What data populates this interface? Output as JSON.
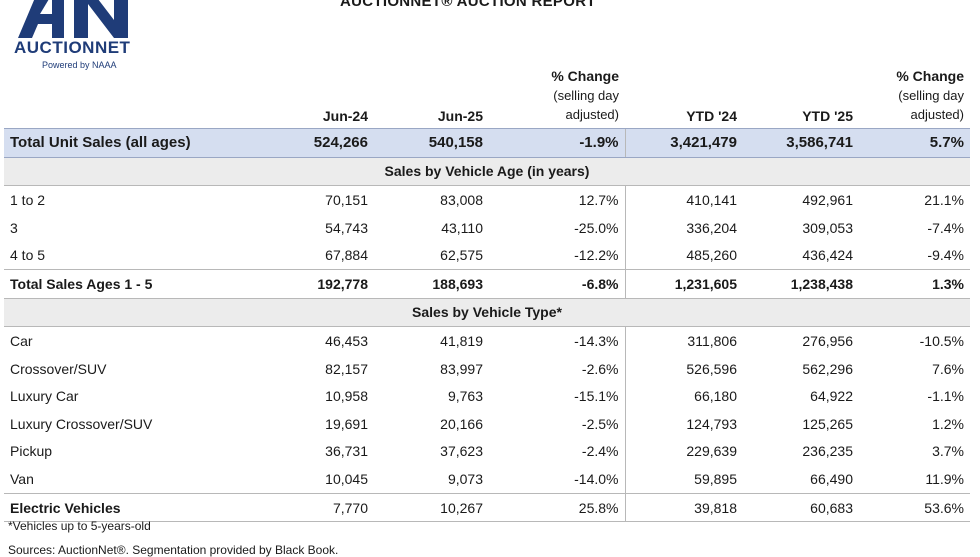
{
  "brand": {
    "name": "AUCTIONNET",
    "tagline": "Powered by NAAA"
  },
  "title": "AUCTIONNET® AUCTION REPORT",
  "header": {
    "jun24": "Jun-24",
    "jun25": "Jun-25",
    "pct_title": "% Change",
    "pct_line2": "(selling day",
    "pct_line3": "adjusted)",
    "ytd24": "YTD '24",
    "ytd25": "YTD '25"
  },
  "total": {
    "label": "Total Unit Sales (all ages)",
    "jun24": "524,266",
    "jun25": "540,158",
    "pct": "-1.9%",
    "ytd24": "3,421,479",
    "ytd25": "3,586,741",
    "ytd_pct": "5.7%"
  },
  "age_section_title": "Sales by Vehicle Age (in years)",
  "age_rows": [
    {
      "label": "1 to 2",
      "jun24": "70,151",
      "jun25": "83,008",
      "pct": "12.7%",
      "ytd24": "410,141",
      "ytd25": "492,961",
      "ytd_pct": "21.1%"
    },
    {
      "label": "3",
      "jun24": "54,743",
      "jun25": "43,110",
      "pct": "-25.0%",
      "ytd24": "336,204",
      "ytd25": "309,053",
      "ytd_pct": "-7.4%"
    },
    {
      "label": "4 to 5",
      "jun24": "67,884",
      "jun25": "62,575",
      "pct": "-12.2%",
      "ytd24": "485,260",
      "ytd25": "436,424",
      "ytd_pct": "-9.4%"
    }
  ],
  "age_total": {
    "label": "Total Sales Ages 1 - 5",
    "jun24": "192,778",
    "jun25": "188,693",
    "pct": "-6.8%",
    "ytd24": "1,231,605",
    "ytd25": "1,238,438",
    "ytd_pct": "1.3%"
  },
  "type_section_title": "Sales by Vehicle Type*",
  "type_rows": [
    {
      "label": "Car",
      "jun24": "46,453",
      "jun25": "41,819",
      "pct": "-14.3%",
      "ytd24": "311,806",
      "ytd25": "276,956",
      "ytd_pct": "-10.5%"
    },
    {
      "label": "Crossover/SUV",
      "jun24": "82,157",
      "jun25": "83,997",
      "pct": "-2.6%",
      "ytd24": "526,596",
      "ytd25": "562,296",
      "ytd_pct": "7.6%"
    },
    {
      "label": "Luxury Car",
      "jun24": "10,958",
      "jun25": "9,763",
      "pct": "-15.1%",
      "ytd24": "66,180",
      "ytd25": "64,922",
      "ytd_pct": "-1.1%"
    },
    {
      "label": "Luxury Crossover/SUV",
      "jun24": "19,691",
      "jun25": "20,166",
      "pct": "-2.5%",
      "ytd24": "124,793",
      "ytd25": "125,265",
      "ytd_pct": "1.2%"
    },
    {
      "label": "Pickup",
      "jun24": "36,731",
      "jun25": "37,623",
      "pct": "-2.4%",
      "ytd24": "229,639",
      "ytd25": "236,235",
      "ytd_pct": "3.7%"
    },
    {
      "label": "Van",
      "jun24": "10,045",
      "jun25": "9,073",
      "pct": "-14.0%",
      "ytd24": "59,895",
      "ytd25": "66,490",
      "ytd_pct": "11.9%"
    }
  ],
  "ev": {
    "label": "Electric Vehicles",
    "jun24": "7,770",
    "jun25": "10,267",
    "pct": "25.8%",
    "ytd24": "39,818",
    "ytd25": "60,683",
    "ytd_pct": "53.6%"
  },
  "footnote": "*Vehicles up to 5-years-old",
  "sources": "Sources: AuctionNet®. Segmentation provided by Black Book.",
  "colors": {
    "brand_navy": "#1f3c78",
    "total_row_bg": "#d5def0",
    "section_bg": "#ececec"
  }
}
